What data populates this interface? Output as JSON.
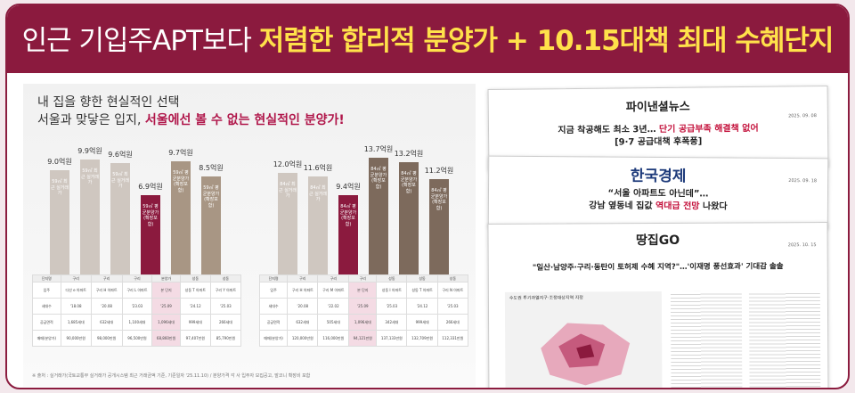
{
  "banner": {
    "title_white": "인근 기입주APT보다 ",
    "title_yellow": "저렴한 합리적 분양가 + 10.15대책 최대 수혜단지"
  },
  "left": {
    "subtitle_line1": "내 집을 향한 현실적인 선택",
    "subtitle_line2_plain": "서울과 맞닿은 입지, ",
    "subtitle_line2_red": "서울에선 볼 수 없는 현실적인 분양가!",
    "chart1": {
      "colors": [
        "#cfc7c0",
        "#cfc7c0",
        "#cfc7c0",
        "#8b1a3e",
        "#a89684",
        "#a89684"
      ],
      "bars": [
        {
          "value": 9.0,
          "label": "9.0억원",
          "area": "59㎡",
          "note": "최근 실거래가"
        },
        {
          "value": 9.9,
          "label": "9.9억원",
          "area": "59㎡",
          "note": "최근 실거래가"
        },
        {
          "value": 9.6,
          "label": "9.6억원",
          "area": "59㎡",
          "note": "최근 실거래가"
        },
        {
          "value": 6.9,
          "label": "6.9억원",
          "area": "59㎡",
          "note": "평균분양가 (확장포함)"
        },
        {
          "value": 9.7,
          "label": "9.7억원",
          "area": "59㎡",
          "note": "평균분양가 (확장포함)"
        },
        {
          "value": 8.5,
          "label": "8.5억원",
          "area": "59㎡",
          "note": "평균분양가 (확장포함)"
        }
      ]
    },
    "chart2": {
      "colors": [
        "#cfc7c0",
        "#cfc7c0",
        "#8b1a3e",
        "#7d6a5c",
        "#7d6a5c",
        "#7d6a5c"
      ],
      "bars": [
        {
          "value": 12.0,
          "label": "12.0억원",
          "area": "84㎡",
          "note": "최근 실거래가"
        },
        {
          "value": 11.6,
          "label": "11.6억원",
          "area": "84㎡",
          "note": "최근 실거래가"
        },
        {
          "value": 9.4,
          "label": "9.4억원",
          "area": "84㎡",
          "note": "평균분양가 (확장포함)"
        },
        {
          "value": 13.7,
          "label": "13.7억원",
          "area": "84㎡",
          "note": "평균분양가 (확장포함)"
        },
        {
          "value": 13.2,
          "label": "13.2억원",
          "area": "84㎡",
          "note": "평균분양가 (확장포함)"
        },
        {
          "value": 11.2,
          "label": "11.2억원",
          "area": "84㎡",
          "note": "평균분양가 (확장포함)"
        }
      ]
    },
    "table1": {
      "rows": [
        [
          "단지명",
          "구리",
          "구리",
          "구리",
          "분양가",
          "성동",
          "성동"
        ],
        [
          "입주",
          "다산 e 아파트",
          "구리 H 아파트",
          "구리 L 아파트",
          "본 단지",
          "성동 T 아파트",
          "구리 Y 아파트"
        ],
        [
          "세대수",
          "'18.08",
          "'20.08",
          "'23.03",
          "'25.09",
          "'24.12",
          "'25.03"
        ],
        [
          "공급면적",
          "1,685세대",
          "632세대",
          "1,100세대",
          "1,096세대",
          "999세대",
          "266세대"
        ],
        [
          "매매(분양가)",
          "90,000만원",
          "98,000만원",
          "96,500만원",
          "68,860만원",
          "97,407만원",
          "85,790만원"
        ]
      ]
    },
    "table2": {
      "rows": [
        [
          "단지명",
          "구리",
          "구리",
          "구리",
          "성동",
          "성동",
          "성동"
        ],
        [
          "입주",
          "구리 H 아파트",
          "구리 M 아파트",
          "본 단지",
          "성동 I 아파트",
          "성동 T 아파트",
          "구리 N 아파트"
        ],
        [
          "세대수",
          "'20.08",
          "'22.02",
          "'25.09",
          "'25.03",
          "'24.12",
          "'25.03"
        ],
        [
          "공급면적",
          "632세대",
          "505세대",
          "1,096세대",
          "342세대",
          "999세대",
          "266세대"
        ],
        [
          "매매(분양가)",
          "120,000만원",
          "116,000만원",
          "94,121만원",
          "137,133만원",
          "132,709만원",
          "112,331만원"
        ]
      ]
    },
    "footnote": "※ 출처 : 실거래가(국토교통부 실거래가 공개시스템 최근 거래금액 기준, 기준일자 '25.11.10) / 분양가격 각 사 입주자 모집공고, 발코니 확장비 포함"
  },
  "news": {
    "n1": {
      "logo": "파이낸셜뉴스",
      "date": "2025. 09. 08",
      "line1_plain": "지금 착공해도 최소 3년… ",
      "line1_red": "단기 공급부족 해결책 없어",
      "line2": "[9·7 공급대책 후폭풍]"
    },
    "n2": {
      "logo": "한국경제",
      "date": "2025. 09. 18",
      "line1": "“서울 아파트도 아닌데”…",
      "line2_plain1": "강남 옆동네 집값 ",
      "line2_red": "역대급 전망",
      "line2_plain2": " 나왔다"
    },
    "n3": {
      "logo": "땅집GO",
      "date": "2025. 10. 15",
      "headline": "\"일산·남양주·구리·동탄이 토허제 수혜 지역?\"…'이재명 풍선효과' 기대감 솔솔",
      "map_title": "수도권 투기과열지구·조정대상지역 지정"
    }
  }
}
